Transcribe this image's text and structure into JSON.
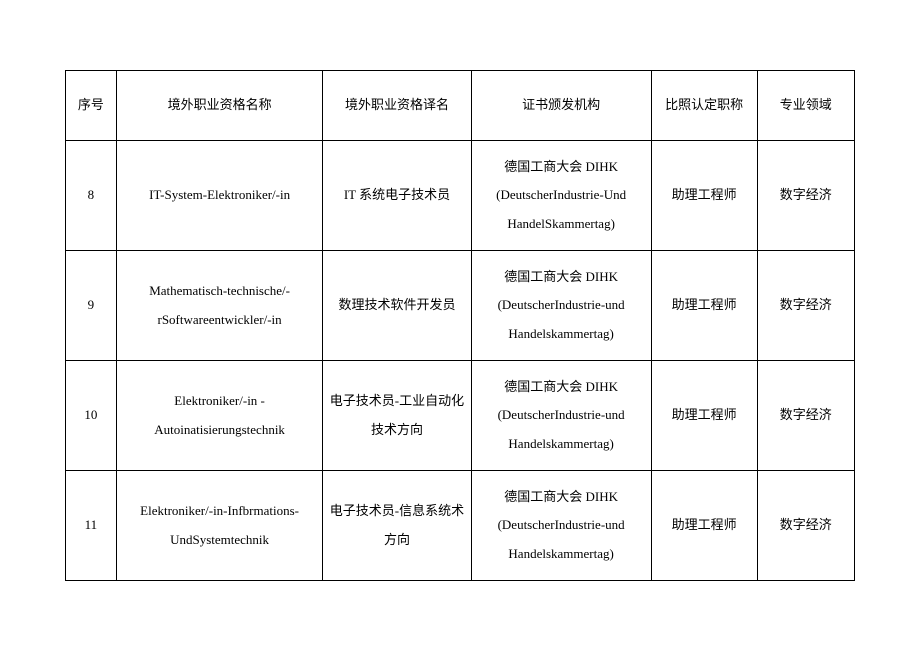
{
  "table": {
    "columns": [
      "序号",
      "境外职业资格名称",
      "境外职业资格译名",
      "证书颁发机构",
      "比照认定职称",
      "专业领域"
    ],
    "rows": [
      {
        "seq": "8",
        "name": "IT-System-Elektroniker/-in",
        "trans": "IT 系统电子技术员",
        "issuer": "德国工商大会 DIHK (DeutscherIndustrie-Und HandelSkammertag)",
        "title": "助理工程师",
        "field": "数字经济"
      },
      {
        "seq": "9",
        "name": "Mathematisch-technische/-rSoftwareentwickler/-in",
        "trans": "数理技术软件开发员",
        "issuer": "德国工商大会 DIHK (DeutscherIndustrie-und Handelskammertag)",
        "title": "助理工程师",
        "field": "数字经济"
      },
      {
        "seq": "10",
        "name": "Elektroniker/-in -Autoinatisierungstechnik",
        "trans": "电子技术员-工业自动化技术方向",
        "issuer": "德国工商大会 DIHK (DeutscherIndustrie-und Handelskammertag)",
        "title": "助理工程师",
        "field": "数字经济"
      },
      {
        "seq": "11",
        "name": "Elektroniker/-in-Infbrmations-UndSystemtechnik",
        "trans": "电子技术员-信息系统术方向",
        "issuer": "德国工商大会 DIHK (DeutscherIndustrie-und Handelskammertag)",
        "title": "助理工程师",
        "field": "数字经济"
      }
    ]
  }
}
